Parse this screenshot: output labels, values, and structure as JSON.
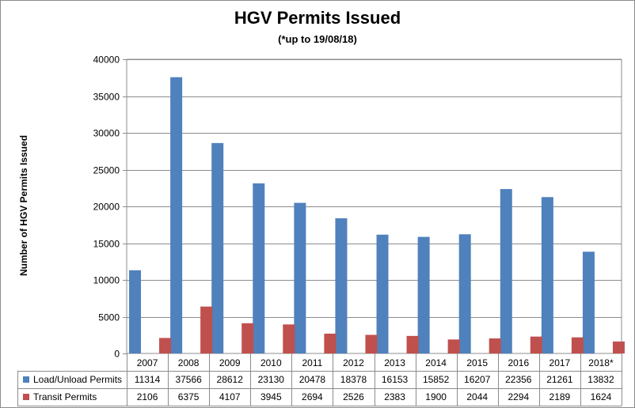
{
  "chart_data": {
    "type": "bar",
    "title": "HGV Permits Issued",
    "subtitle": "(*up to 19/08/18)",
    "ylabel": "Number of HGV Permits Issued",
    "xlabel": "",
    "ylim": [
      0,
      40000
    ],
    "yticks": [
      0,
      5000,
      10000,
      15000,
      20000,
      25000,
      30000,
      35000,
      40000
    ],
    "grid": true,
    "legend": "data-table",
    "categories": [
      "2007",
      "2008",
      "2009",
      "2010",
      "2011",
      "2012",
      "2013",
      "2014",
      "2015",
      "2016",
      "2017",
      "2018*"
    ],
    "series": [
      {
        "name": "Load/Unload Permits",
        "color": "#4f81bd",
        "values": [
          11314,
          37566,
          28612,
          23130,
          20478,
          18378,
          16153,
          15852,
          16207,
          22356,
          21261,
          13832
        ]
      },
      {
        "name": "Transit Permits",
        "color": "#c0504d",
        "values": [
          2106,
          6375,
          4107,
          3945,
          2694,
          2526,
          2383,
          1900,
          2044,
          2294,
          2189,
          1624
        ]
      }
    ]
  }
}
